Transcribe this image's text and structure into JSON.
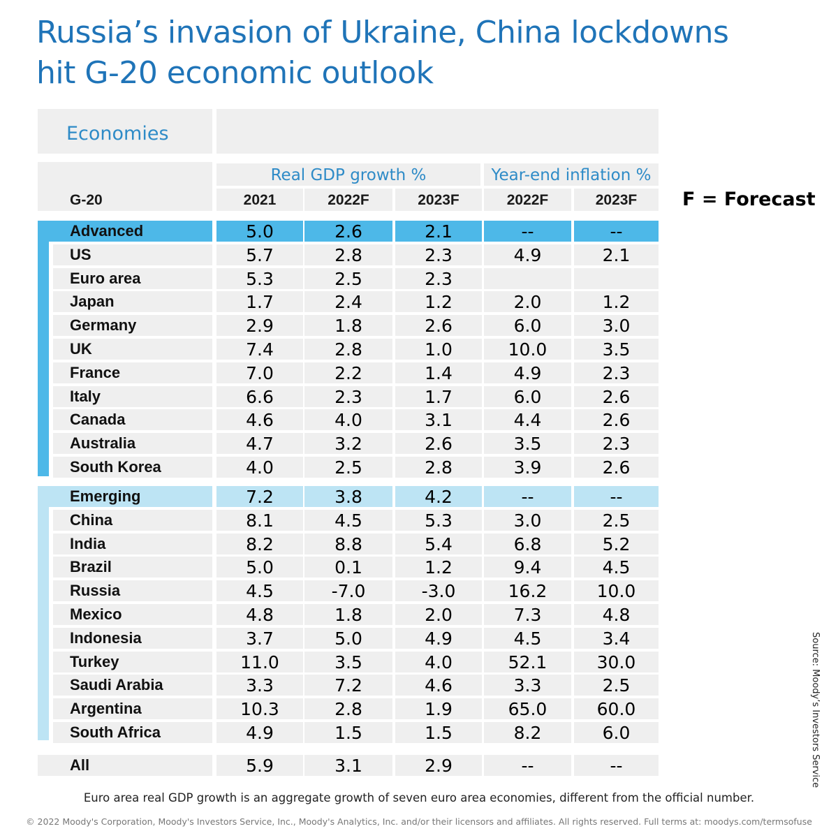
{
  "title_lines": [
    "Russia’s invasion of Ukraine, China lockdowns",
    "hit G-20 economic outlook"
  ],
  "chart_data": {
    "type": "table",
    "title": "Russia’s invasion of Ukraine, China lockdowns hit G-20 economic outlook",
    "header_label": "Economies",
    "group_label": "G-20",
    "column_groups": [
      {
        "name": "Real GDP growth %",
        "columns": [
          "2021",
          "2022F",
          "2023F"
        ]
      },
      {
        "name": "Year-end inflation %",
        "columns": [
          "2022F",
          "2023F"
        ]
      }
    ],
    "columns": [
      "2021",
      "2022F",
      "2023F",
      "2022F",
      "2023F"
    ],
    "forecast_note": "F = Forecast",
    "sections": [
      {
        "name": "Advanced",
        "summary": [
          "5.0",
          "2.6",
          "2.1",
          "--",
          "--"
        ],
        "color": "#4db8e8",
        "rows": [
          {
            "name": "US",
            "values": [
              "5.7",
              "2.8",
              "2.3",
              "4.9",
              "2.1"
            ]
          },
          {
            "name": "Euro area",
            "values": [
              "5.3",
              "2.5",
              "2.3",
              "",
              ""
            ]
          },
          {
            "name": "Japan",
            "values": [
              "1.7",
              "2.4",
              "1.2",
              "2.0",
              "1.2"
            ]
          },
          {
            "name": "Germany",
            "values": [
              "2.9",
              "1.8",
              "2.6",
              "6.0",
              "3.0"
            ]
          },
          {
            "name": "UK",
            "values": [
              "7.4",
              "2.8",
              "1.0",
              "10.0",
              "3.5"
            ]
          },
          {
            "name": "France",
            "values": [
              "7.0",
              "2.2",
              "1.4",
              "4.9",
              "2.3"
            ]
          },
          {
            "name": "Italy",
            "values": [
              "6.6",
              "2.3",
              "1.7",
              "6.0",
              "2.6"
            ]
          },
          {
            "name": "Canada",
            "values": [
              "4.6",
              "4.0",
              "3.1",
              "4.4",
              "2.6"
            ]
          },
          {
            "name": "Australia",
            "values": [
              "4.7",
              "3.2",
              "2.6",
              "3.5",
              "2.3"
            ]
          },
          {
            "name": "South Korea",
            "values": [
              "4.0",
              "2.5",
              "2.8",
              "3.9",
              "2.6"
            ]
          }
        ]
      },
      {
        "name": "Emerging",
        "summary": [
          "7.2",
          "3.8",
          "4.2",
          "--",
          "--"
        ],
        "color": "#bde4f4",
        "rows": [
          {
            "name": "China",
            "values": [
              "8.1",
              "4.5",
              "5.3",
              "3.0",
              "2.5"
            ]
          },
          {
            "name": "India",
            "values": [
              "8.2",
              "8.8",
              "5.4",
              "6.8",
              "5.2"
            ]
          },
          {
            "name": "Brazil",
            "values": [
              "5.0",
              "0.1",
              "1.2",
              "9.4",
              "4.5"
            ]
          },
          {
            "name": "Russia",
            "values": [
              "4.5",
              "-7.0",
              "-3.0",
              "16.2",
              "10.0"
            ]
          },
          {
            "name": "Mexico",
            "values": [
              "4.8",
              "1.8",
              "2.0",
              "7.3",
              "4.8"
            ]
          },
          {
            "name": "Indonesia",
            "values": [
              "3.7",
              "5.0",
              "4.9",
              "4.5",
              "3.4"
            ]
          },
          {
            "name": "Turkey",
            "values": [
              "11.0",
              "3.5",
              "4.0",
              "52.1",
              "30.0"
            ]
          },
          {
            "name": "Saudi Arabia",
            "values": [
              "3.3",
              "7.2",
              "4.6",
              "3.3",
              "2.5"
            ]
          },
          {
            "name": "Argentina",
            "values": [
              "10.3",
              "2.8",
              "1.9",
              "65.0",
              "60.0"
            ]
          },
          {
            "name": "South Africa",
            "values": [
              "4.9",
              "1.5",
              "1.5",
              "8.2",
              "6.0"
            ]
          }
        ]
      }
    ],
    "total": {
      "name": "All",
      "values": [
        "5.9",
        "3.1",
        "2.9",
        "--",
        "--"
      ]
    }
  },
  "footnote": "Euro area real GDP growth is an aggregate growth of seven euro area economies, different from the official number.",
  "copyright": "© 2022 Moody's Corporation, Moody's Investors Service, Inc., Moody's Analytics, Inc. and/or their licensors and affiliates. All rights reserved. Full terms at: moodys.com/termsofuse",
  "source": "Source: Moody’s Investors Service"
}
